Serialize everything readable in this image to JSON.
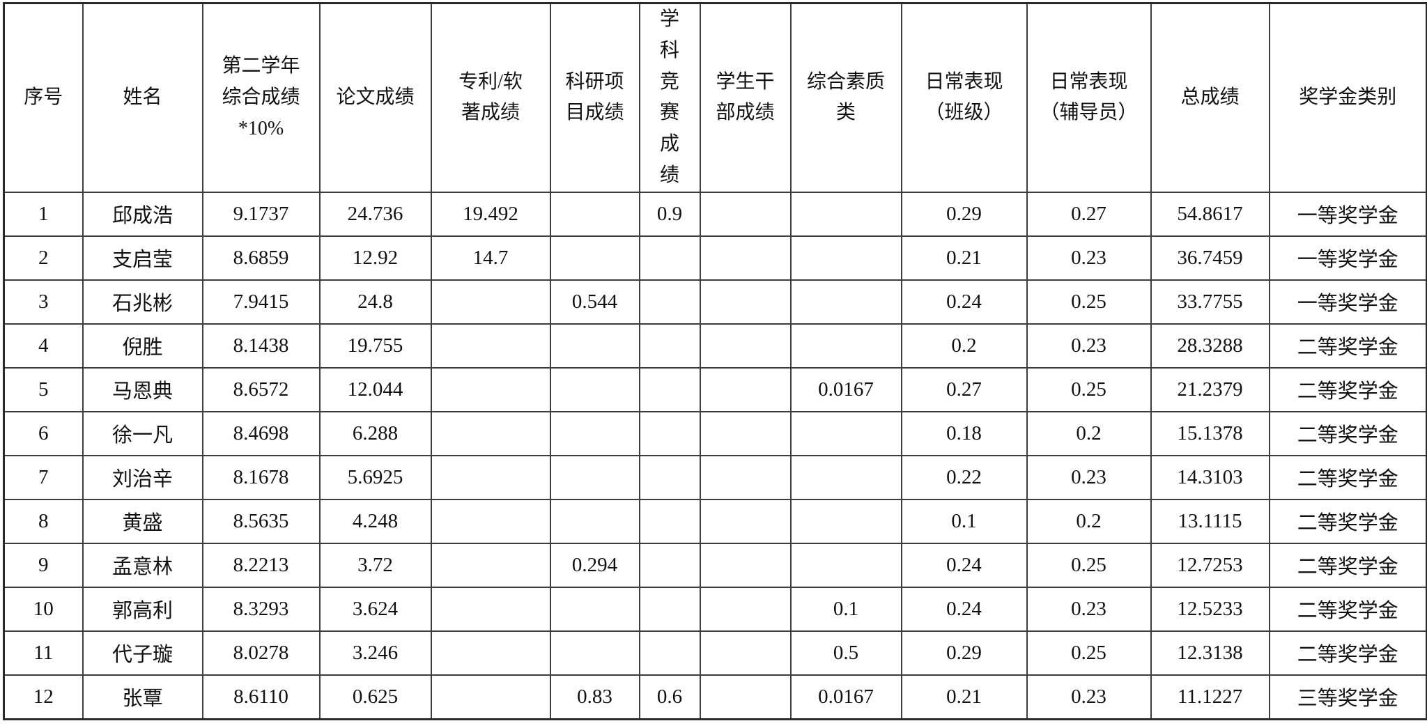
{
  "table": {
    "columns": [
      {
        "key": "index",
        "label": "序号"
      },
      {
        "key": "name",
        "label": "姓名"
      },
      {
        "key": "year2-composite",
        "label": "第二学年\n综合成绩\n*10%"
      },
      {
        "key": "paper-score",
        "label": "论文成绩"
      },
      {
        "key": "patent-score",
        "label": "专利/软\n著成绩"
      },
      {
        "key": "research-score",
        "label": "科研项\n目成绩"
      },
      {
        "key": "competition-score",
        "label": "学\n科\n竞\n赛\n成\n绩"
      },
      {
        "key": "cadre-score",
        "label": "学生干\n部成绩"
      },
      {
        "key": "quality-score",
        "label": "综合素质\n类"
      },
      {
        "key": "daily-class",
        "label": "日常表现\n（班级）"
      },
      {
        "key": "daily-counselor",
        "label": "日常表现\n（辅导员）"
      },
      {
        "key": "total-score",
        "label": "总成绩"
      },
      {
        "key": "scholarship-type",
        "label": "奖学金类别"
      }
    ],
    "rows": [
      {
        "cells": [
          "1",
          "邱成浩",
          "9.1737",
          "24.736",
          "19.492",
          "",
          "0.9",
          "",
          "",
          "0.29",
          "0.27",
          "54.8617",
          "一等奖学金"
        ]
      },
      {
        "cells": [
          "2",
          "支启莹",
          "8.6859",
          "12.92",
          "14.7",
          "",
          "",
          "",
          "",
          "0.21",
          "0.23",
          "36.7459",
          "一等奖学金"
        ]
      },
      {
        "cells": [
          "3",
          "石兆彬",
          "7.9415",
          "24.8",
          "",
          "0.544",
          "",
          "",
          "",
          "0.24",
          "0.25",
          "33.7755",
          "一等奖学金"
        ]
      },
      {
        "cells": [
          "4",
          "倪胜",
          "8.1438",
          "19.755",
          "",
          "",
          "",
          "",
          "",
          "0.2",
          "0.23",
          "28.3288",
          "二等奖学金"
        ]
      },
      {
        "cells": [
          "5",
          "马恩典",
          "8.6572",
          "12.044",
          "",
          "",
          "",
          "",
          "0.0167",
          "0.27",
          "0.25",
          "21.2379",
          "二等奖学金"
        ]
      },
      {
        "cells": [
          "6",
          "徐一凡",
          "8.4698",
          "6.288",
          "",
          "",
          "",
          "",
          "",
          "0.18",
          "0.2",
          "15.1378",
          "二等奖学金"
        ]
      },
      {
        "cells": [
          "7",
          "刘治辛",
          "8.1678",
          "5.6925",
          "",
          "",
          "",
          "",
          "",
          "0.22",
          "0.23",
          "14.3103",
          "二等奖学金"
        ]
      },
      {
        "cells": [
          "8",
          "黄盛",
          "8.5635",
          "4.248",
          "",
          "",
          "",
          "",
          "",
          "0.1",
          "0.2",
          "13.1115",
          "二等奖学金"
        ]
      },
      {
        "cells": [
          "9",
          "孟意林",
          "8.2213",
          "3.72",
          "",
          "0.294",
          "",
          "",
          "",
          "0.24",
          "0.25",
          "12.7253",
          "二等奖学金"
        ]
      },
      {
        "cells": [
          "10",
          "郭高利",
          "8.3293",
          "3.624",
          "",
          "",
          "",
          "",
          "0.1",
          "0.24",
          "0.23",
          "12.5233",
          "二等奖学金"
        ]
      },
      {
        "cells": [
          "11",
          "代子璇",
          "8.0278",
          "3.246",
          "",
          "",
          "",
          "",
          "0.5",
          "0.29",
          "0.25",
          "12.3138",
          "二等奖学金"
        ]
      },
      {
        "cells": [
          "12",
          "张覃",
          "8.6110",
          "0.625",
          "",
          "0.83",
          "0.6",
          "",
          "0.0167",
          "0.21",
          "0.23",
          "11.1227",
          "三等奖学金"
        ]
      }
    ]
  }
}
